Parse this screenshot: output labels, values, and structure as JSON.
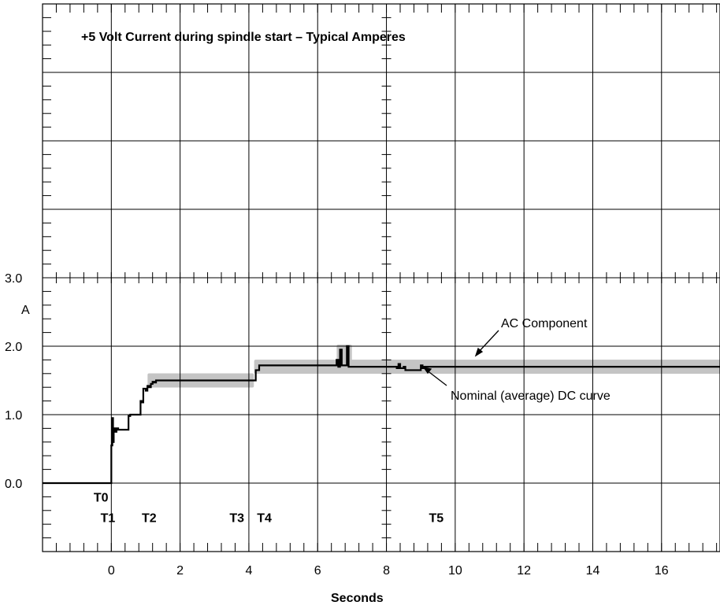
{
  "chart_data": {
    "type": "line",
    "title": "+5 Volt Current during spindle start – Typical Amperes",
    "xlabel": "Seconds",
    "ylabel": "A",
    "xlim": [
      -2,
      17.7
    ],
    "ylim": [
      -1,
      7
    ],
    "grid": true,
    "x_ticks": [
      0,
      2,
      4,
      6,
      8,
      10,
      12,
      14,
      16
    ],
    "y_tick_labels": [
      {
        "value": 3.0,
        "label": "3.0"
      },
      {
        "value": 2.0,
        "label": "2.0"
      },
      {
        "value": 1.0,
        "label": "1.0"
      },
      {
        "value": 0.0,
        "label": "0.0"
      }
    ],
    "series": [
      {
        "name": "Nominal (average) DC curve",
        "x": [
          -2,
          0,
          0.0,
          0.03,
          0.05,
          0.07,
          0.1,
          0.15,
          0.2,
          0.3,
          0.5,
          0.55,
          0.8,
          0.85,
          0.9,
          0.93,
          1.0,
          1.05,
          1.1,
          1.15,
          1.2,
          1.25,
          1.3,
          4.15,
          4.2,
          4.3,
          6.5,
          6.55,
          6.6,
          6.65,
          6.7,
          6.8,
          6.85,
          6.9,
          8.0,
          8.3,
          8.35,
          8.4,
          8.5,
          8.55,
          8.9,
          9.0,
          9.05,
          9.1,
          17.7
        ],
        "y": [
          0,
          0,
          0.55,
          0.95,
          0.6,
          0.8,
          0.75,
          0.8,
          0.78,
          0.78,
          0.98,
          1.0,
          1.0,
          1.2,
          1.18,
          1.38,
          1.35,
          1.42,
          1.4,
          1.45,
          1.48,
          1.47,
          1.5,
          1.5,
          1.65,
          1.72,
          1.72,
          1.8,
          1.7,
          1.95,
          1.72,
          1.72,
          2.0,
          1.7,
          1.7,
          1.68,
          1.74,
          1.68,
          1.7,
          1.65,
          1.65,
          1.72,
          1.68,
          1.7,
          1.7
        ]
      }
    ],
    "ac_band": {
      "name": "AC Component",
      "color": "#c4c4c4",
      "segments": [
        {
          "x": [
            1.1,
            4.1
          ],
          "y": 1.5,
          "spread": 0.08
        },
        {
          "x": [
            4.2,
            17.7
          ],
          "y": 1.7,
          "spread": 0.08
        },
        {
          "x": [
            6.6,
            6.95
          ],
          "y": 1.9,
          "spread": 0.1
        }
      ]
    },
    "annotations": [
      {
        "text": "AC Component",
        "x": 11.55,
        "y": 2.37
      },
      {
        "text": "Nominal (average) DC curve",
        "x": 13.5,
        "y": 1.26
      }
    ],
    "time_markers": [
      {
        "label": "T0",
        "x": -0.3,
        "y": -0.2
      },
      {
        "label": "T1",
        "x": -0.1,
        "y": -0.5
      },
      {
        "label": "T2",
        "x": 1.1,
        "y": -0.5
      },
      {
        "label": "T3",
        "x": 3.65,
        "y": -0.5
      },
      {
        "label": "T4",
        "x": 4.45,
        "y": -0.5
      },
      {
        "label": "T5",
        "x": 9.45,
        "y": -0.5
      }
    ]
  }
}
